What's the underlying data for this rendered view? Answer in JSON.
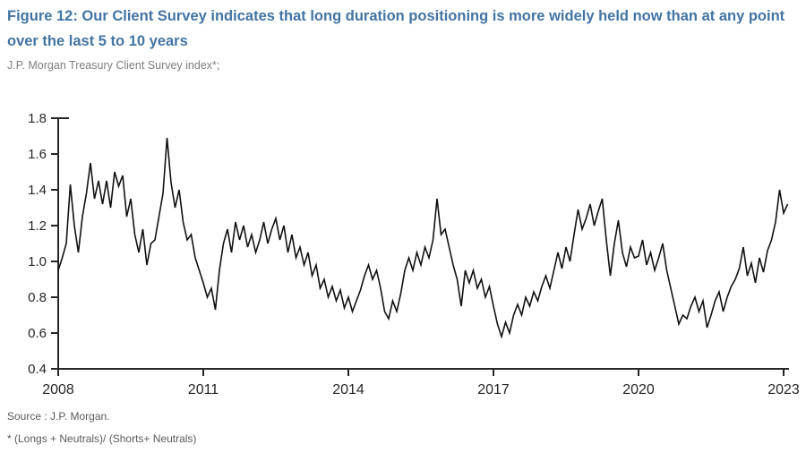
{
  "figure": {
    "title": "Figure 12: Our Client Survey indicates that long duration positioning is more widely held now than at any point over the last 5 to 10 years",
    "subtitle": "J.P. Morgan Treasury Client Survey index*;",
    "source": "Source : J.P. Morgan.",
    "footnote": "* (Longs + Neutrals)/ (Shorts+ Neutrals)",
    "title_color": "#4274A3",
    "line_color": "#111111",
    "axis_color": "#262626"
  },
  "chart_data": {
    "type": "line",
    "title": "J.P. Morgan Treasury Client Survey index*",
    "xlabel": "",
    "ylabel": "",
    "legend": "none",
    "grid": false,
    "xlim": [
      2008,
      2023.1
    ],
    "ylim": [
      0.4,
      1.8
    ],
    "y_ticks": [
      1.8,
      1.6,
      1.4,
      1.2,
      1.0,
      0.8,
      0.6,
      0.4
    ],
    "x_ticks": [
      2008,
      2011,
      2014,
      2017,
      2020,
      2023
    ],
    "x_start": 2008,
    "x_step_years": 0.0833333,
    "values": [
      0.95,
      1.02,
      1.1,
      1.43,
      1.2,
      1.05,
      1.25,
      1.38,
      1.55,
      1.35,
      1.45,
      1.32,
      1.45,
      1.3,
      1.5,
      1.42,
      1.48,
      1.25,
      1.35,
      1.15,
      1.05,
      1.18,
      0.98,
      1.1,
      1.12,
      1.25,
      1.38,
      1.69,
      1.44,
      1.3,
      1.4,
      1.22,
      1.12,
      1.15,
      1.02,
      0.95,
      0.88,
      0.8,
      0.85,
      0.73,
      0.95,
      1.1,
      1.18,
      1.05,
      1.22,
      1.12,
      1.2,
      1.08,
      1.15,
      1.05,
      1.12,
      1.22,
      1.1,
      1.18,
      1.24,
      1.12,
      1.2,
      1.05,
      1.15,
      1.02,
      1.08,
      0.98,
      1.05,
      0.92,
      0.98,
      0.85,
      0.9,
      0.8,
      0.86,
      0.78,
      0.84,
      0.74,
      0.8,
      0.72,
      0.78,
      0.84,
      0.92,
      0.98,
      0.9,
      0.95,
      0.85,
      0.72,
      0.68,
      0.78,
      0.72,
      0.82,
      0.95,
      1.02,
      0.95,
      1.05,
      0.98,
      1.08,
      1.02,
      1.12,
      1.35,
      1.15,
      1.18,
      1.08,
      0.98,
      0.9,
      0.75,
      0.95,
      0.88,
      0.95,
      0.85,
      0.9,
      0.8,
      0.86,
      0.75,
      0.65,
      0.58,
      0.66,
      0.6,
      0.7,
      0.76,
      0.7,
      0.8,
      0.75,
      0.83,
      0.78,
      0.86,
      0.92,
      0.85,
      0.95,
      1.05,
      0.96,
      1.08,
      1.0,
      1.15,
      1.29,
      1.18,
      1.24,
      1.32,
      1.2,
      1.28,
      1.35,
      1.12,
      0.92,
      1.1,
      1.23,
      1.05,
      0.97,
      1.08,
      1.02,
      1.03,
      1.12,
      0.98,
      1.05,
      0.95,
      1.02,
      1.1,
      0.95,
      0.85,
      0.75,
      0.65,
      0.7,
      0.68,
      0.75,
      0.8,
      0.72,
      0.78,
      0.63,
      0.7,
      0.78,
      0.83,
      0.72,
      0.8,
      0.86,
      0.9,
      0.96,
      1.08,
      0.92,
      0.99,
      0.88,
      1.02,
      0.94,
      1.06,
      1.12,
      1.22,
      1.4,
      1.27,
      1.32
    ]
  }
}
